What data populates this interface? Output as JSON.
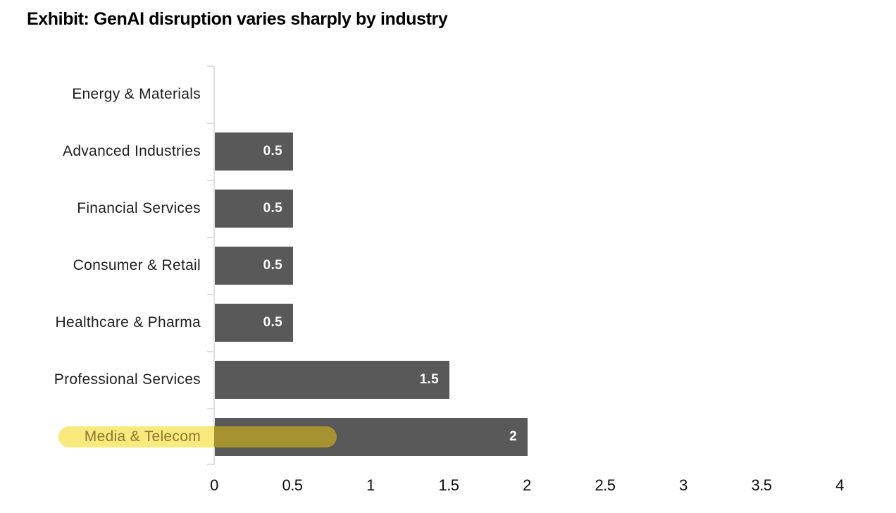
{
  "header": {
    "title": "Exhibit: GenAI disruption varies sharply by industry"
  },
  "chart_data": {
    "type": "bar",
    "orientation": "horizontal",
    "title": "Exhibit: GenAI disruption varies sharply by industry",
    "categories": [
      "Energy & Materials",
      "Advanced Industries",
      "Financial Services",
      "Consumer & Retail",
      "Healthcare & Pharma",
      "Professional Services",
      "Media & Telecom"
    ],
    "values": [
      0,
      0.5,
      0.5,
      0.5,
      0.5,
      1.5,
      2
    ],
    "bar_labels": [
      "",
      "0.5",
      "0.5",
      "0.5",
      "0.5",
      "1.5",
      "2"
    ],
    "x_tick_labels": [
      "0",
      "0.5",
      "1",
      "1.5",
      "2",
      "2.5",
      "3",
      "3.5",
      "4"
    ],
    "xlim": [
      0,
      4
    ],
    "grid": "off",
    "legend": "none",
    "annotation": {
      "highlighted_category": "Media & Telecom",
      "style": "yellow-highlighter-pill"
    },
    "colors": {
      "bar": "#595959",
      "bar_value_text": "#ffffff",
      "axis": "#e0e0e0",
      "title_text": "#000000",
      "label_text": "#1f1f1f",
      "highlight_light": "#fae97d",
      "highlight_over_bar": "#a6932f",
      "highlight_text": "#8a7a2f"
    }
  }
}
